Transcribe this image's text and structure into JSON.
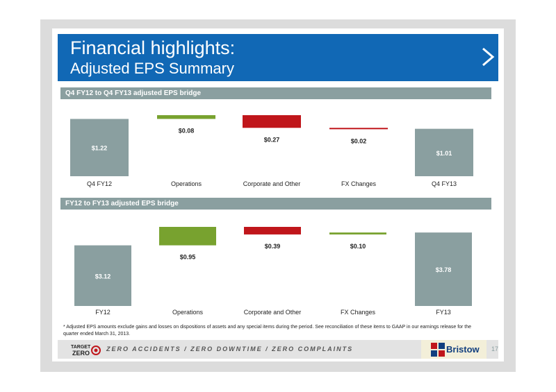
{
  "slide": {
    "title_line1": "Financial highlights:",
    "title_line2": "Adjusted EPS Summary",
    "page_number": "17",
    "footnote": "* Adjusted EPS amounts exclude gains and losses on dispositions of assets and any special items during the period. See reconciliation of these items to GAAP in our earnings release for the quarter ended March 31, 2013.",
    "footer": {
      "logo_line1": "TARGET",
      "logo_line2": "ZERO",
      "slogan": "ZERO ACCIDENTS / ZERO DOWNTIME / ZERO COMPLAINTS",
      "brand": "Bristow"
    }
  },
  "colors": {
    "header_blue": "#1168b5",
    "band_gray": "#8a9fa0",
    "total_bar": "#8a9fa0",
    "increase_bar": "#78a22f",
    "decrease_bar": "#c0161b"
  },
  "chart_data": [
    {
      "type": "bar",
      "subtype": "waterfall",
      "title": "Q4 FY12 to Q4 FY13 adjusted EPS bridge",
      "categories": [
        "Q4 FY12",
        "Operations",
        "Corporate and Other",
        "FX Changes",
        "Q4 FY13"
      ],
      "values": [
        1.22,
        0.08,
        -0.27,
        -0.02,
        1.01
      ],
      "labels": [
        "$1.22",
        "$0.08",
        "$0.27",
        "$0.02",
        "$1.01"
      ],
      "kinds": [
        "total",
        "increase",
        "decrease",
        "decrease",
        "total"
      ]
    },
    {
      "type": "bar",
      "subtype": "waterfall",
      "title": "FY12 to FY13 adjusted EPS bridge",
      "categories": [
        "FY12",
        "Operations",
        "Corporate and Other",
        "FX Changes",
        "FY13"
      ],
      "values": [
        3.12,
        0.95,
        -0.39,
        0.1,
        3.78
      ],
      "labels": [
        "$3.12",
        "$0.95",
        "$0.39",
        "$0.10",
        "$3.78"
      ],
      "kinds": [
        "total",
        "increase",
        "decrease",
        "increase",
        "total"
      ]
    }
  ]
}
